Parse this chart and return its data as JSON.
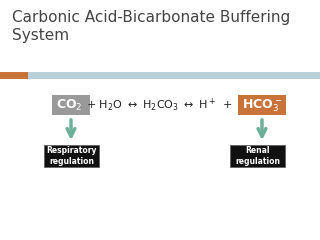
{
  "title": "Carbonic Acid-Bicarbonate Buffering\nSystem",
  "title_fontsize": 11,
  "title_color": "#444444",
  "bg_color": "#f0f0f0",
  "accent_bar_orange": "#c8733a",
  "accent_bar_blue": "#b8d0d8",
  "co2_box_color": "#999999",
  "hco3_box_color": "#c8733a",
  "arrow_color": "#6db09a",
  "label_box_color": "#111111",
  "label_box_edge": "#666666",
  "label_text_color": "#ffffff",
  "equation_color": "#222222",
  "label1": "Respiratory\nregulation",
  "label2": "Renal\nregulation",
  "white_bg": "#ffffff"
}
